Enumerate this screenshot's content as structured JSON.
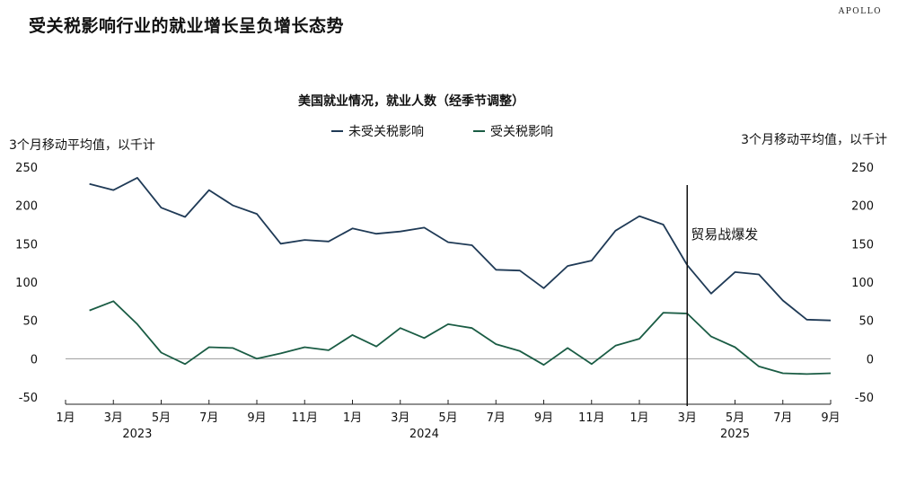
{
  "header": {
    "title": "受关税影响行业的就业增长呈负增长态势",
    "brand": "APOLLO"
  },
  "chart_data": {
    "type": "line",
    "title": "美国就业情况，就业人数（经季节调整）",
    "y_left_label": "3个月移动平均值，以千计",
    "y_right_label": "3个月移动平均值，以千计",
    "ylim": [
      -50,
      250
    ],
    "y_ticks": [
      -50,
      0,
      50,
      100,
      150,
      200,
      250
    ],
    "x_range": [
      "2023-01",
      "2025-09"
    ],
    "x_ticks": [
      {
        "month": "2023-01",
        "label": "1月"
      },
      {
        "month": "2023-03",
        "label": "3月"
      },
      {
        "month": "2023-05",
        "label": "5月"
      },
      {
        "month": "2023-07",
        "label": "7月"
      },
      {
        "month": "2023-09",
        "label": "9月"
      },
      {
        "month": "2023-11",
        "label": "11月"
      },
      {
        "month": "2024-01",
        "label": "1月"
      },
      {
        "month": "2024-03",
        "label": "3月"
      },
      {
        "month": "2024-05",
        "label": "5月"
      },
      {
        "month": "2024-07",
        "label": "7月"
      },
      {
        "month": "2024-09",
        "label": "9月"
      },
      {
        "month": "2024-11",
        "label": "11月"
      },
      {
        "month": "2025-01",
        "label": "1月"
      },
      {
        "month": "2025-03",
        "label": "3月"
      },
      {
        "month": "2025-05",
        "label": "5月"
      },
      {
        "month": "2025-07",
        "label": "7月"
      },
      {
        "month": "2025-09",
        "label": "9月"
      }
    ],
    "year_labels": [
      {
        "month": "2023-04",
        "label": "2023"
      },
      {
        "month": "2024-04",
        "label": "2024"
      },
      {
        "month": "2025-05",
        "label": "2025"
      }
    ],
    "x": [
      "2023-02",
      "2023-03",
      "2023-04",
      "2023-05",
      "2023-06",
      "2023-07",
      "2023-08",
      "2023-09",
      "2023-10",
      "2023-11",
      "2023-12",
      "2024-01",
      "2024-02",
      "2024-03",
      "2024-04",
      "2024-05",
      "2024-06",
      "2024-07",
      "2024-08",
      "2024-09",
      "2024-10",
      "2024-11",
      "2024-12",
      "2025-01",
      "2025-02",
      "2025-03",
      "2025-04",
      "2025-05",
      "2025-06",
      "2025-07",
      "2025-08",
      "2025-09"
    ],
    "series": [
      {
        "name": "未受关税影响",
        "color": "#1f3a56",
        "values": [
          228,
          220,
          236,
          197,
          185,
          220,
          200,
          189,
          150,
          155,
          153,
          170,
          163,
          166,
          171,
          152,
          148,
          116,
          115,
          92,
          121,
          128,
          167,
          186,
          175,
          122,
          85,
          113,
          110,
          76,
          51,
          50
        ]
      },
      {
        "name": "受关税影响",
        "color": "#1a5c44",
        "values": [
          63,
          75,
          45,
          8,
          -7,
          15,
          14,
          0,
          7,
          15,
          11,
          31,
          16,
          40,
          27,
          45,
          40,
          19,
          10,
          -8,
          14,
          -7,
          17,
          26,
          60,
          59,
          29,
          15,
          -10,
          -19,
          -20,
          -19
        ]
      }
    ],
    "annotation": {
      "month": "2025-03",
      "label": "贸易战爆发"
    },
    "grid": false,
    "legend_placement": "top-center"
  }
}
